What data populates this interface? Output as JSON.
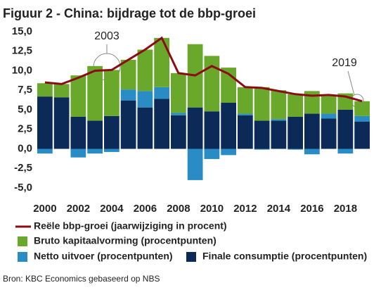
{
  "chart_data": {
    "type": "stacked-bar-line",
    "title": "Figuur 2 - China: bijdrage tot de bbp-groei",
    "source": "Bron: KBC Economics gebaseerd op NBS",
    "annotations": [
      "2003",
      "2019"
    ],
    "categories": [
      "2000",
      null,
      "2002",
      null,
      "2004",
      null,
      "2006",
      null,
      "2008",
      null,
      "2010",
      null,
      "2012",
      null,
      "2014",
      null,
      "2016",
      null,
      "2018",
      null
    ],
    "series": [
      {
        "name": "Finale consumptie (procentpunten)",
        "color": "#0c2a58",
        "kind": "bar",
        "values": [
          6.7,
          6.6,
          4.1,
          3.6,
          4.2,
          6.2,
          5.3,
          6.4,
          4.3,
          5.3,
          4.8,
          5.9,
          4.3,
          3.6,
          3.6,
          4.1,
          4.5,
          3.9,
          5.0,
          3.5
        ]
      },
      {
        "name": "Netto uitvoer (procentpunten)",
        "color": "#2a8cc4",
        "kind": "bar",
        "values": [
          -0.6,
          0.0,
          -1.1,
          -0.6,
          -0.4,
          1.4,
          2.1,
          1.5,
          0.3,
          -4.0,
          -1.3,
          -0.8,
          0.2,
          -0.1,
          0.2,
          -0.1,
          -0.7,
          0.6,
          -0.6,
          0.7
        ]
      },
      {
        "name": "Bruto kapitaalvorming (procentpunten)",
        "color": "#6aa82c",
        "kind": "bar",
        "values": [
          1.7,
          1.7,
          5.3,
          7.0,
          5.9,
          3.8,
          5.3,
          6.3,
          5.1,
          8.1,
          7.1,
          4.5,
          3.4,
          4.3,
          3.7,
          2.9,
          2.9,
          2.4,
          2.1,
          1.9
        ]
      },
      {
        "name": "Reële bbp-groei (jaarwijziging in procent)",
        "color": "#8b0c14",
        "kind": "line",
        "values": [
          8.5,
          8.3,
          9.1,
          10.0,
          10.1,
          11.4,
          12.7,
          14.2,
          9.7,
          9.4,
          10.6,
          9.6,
          7.9,
          7.8,
          7.4,
          7.0,
          6.8,
          6.9,
          6.7,
          6.1
        ]
      }
    ],
    "ylim": [
      -5,
      15
    ],
    "yticks": [
      {
        "value": -5,
        "label": "-5,0"
      },
      {
        "value": -2.5,
        "label": "-2,5"
      },
      {
        "value": 0,
        "label": "0,0"
      },
      {
        "value": 2.5,
        "label": "2,5"
      },
      {
        "value": 5,
        "label": "5,0"
      },
      {
        "value": 7.5,
        "label": "7,5"
      },
      {
        "value": 10,
        "label": "10,0"
      },
      {
        "value": 12.5,
        "label": "12,5"
      },
      {
        "value": 15,
        "label": "15,0"
      }
    ],
    "grid": false
  }
}
